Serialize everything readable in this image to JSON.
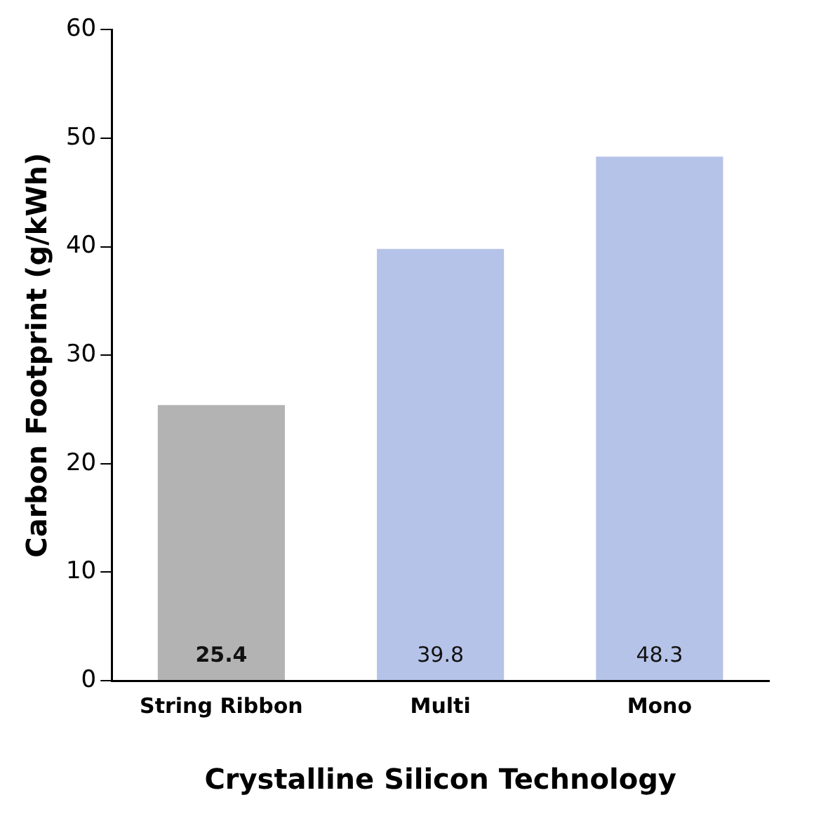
{
  "chart_data": {
    "type": "bar",
    "xlabel": "Crystalline Silicon Technology",
    "ylabel": "Carbon Footprint (g/kWh)",
    "categories": [
      "String Ribbon",
      "Multi",
      "Mono"
    ],
    "values": [
      25.4,
      39.8,
      48.3
    ],
    "colors": [
      "#b3b3b3",
      "#b6c3e8",
      "#b6c3e8"
    ],
    "ylim": [
      0,
      60
    ],
    "yticks": [
      0,
      10,
      20,
      30,
      40,
      50,
      60
    ],
    "grid": false,
    "legend": false,
    "data_labels": true
  }
}
